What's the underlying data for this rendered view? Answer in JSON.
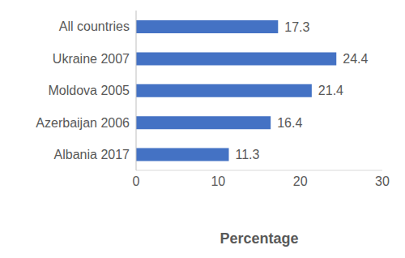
{
  "chart_data": {
    "type": "bar",
    "orientation": "horizontal",
    "categories": [
      "All countries",
      "Ukraine 2007",
      "Moldova 2005",
      "Azerbaijan 2006",
      "Albania 2017"
    ],
    "values": [
      17.3,
      24.4,
      21.4,
      16.4,
      11.3
    ],
    "color": "#4472c4",
    "xlabel": "Percentage",
    "xlim": [
      0,
      30
    ],
    "xticks": [
      0,
      10,
      20,
      30
    ],
    "grid": false,
    "data_labels": true
  }
}
